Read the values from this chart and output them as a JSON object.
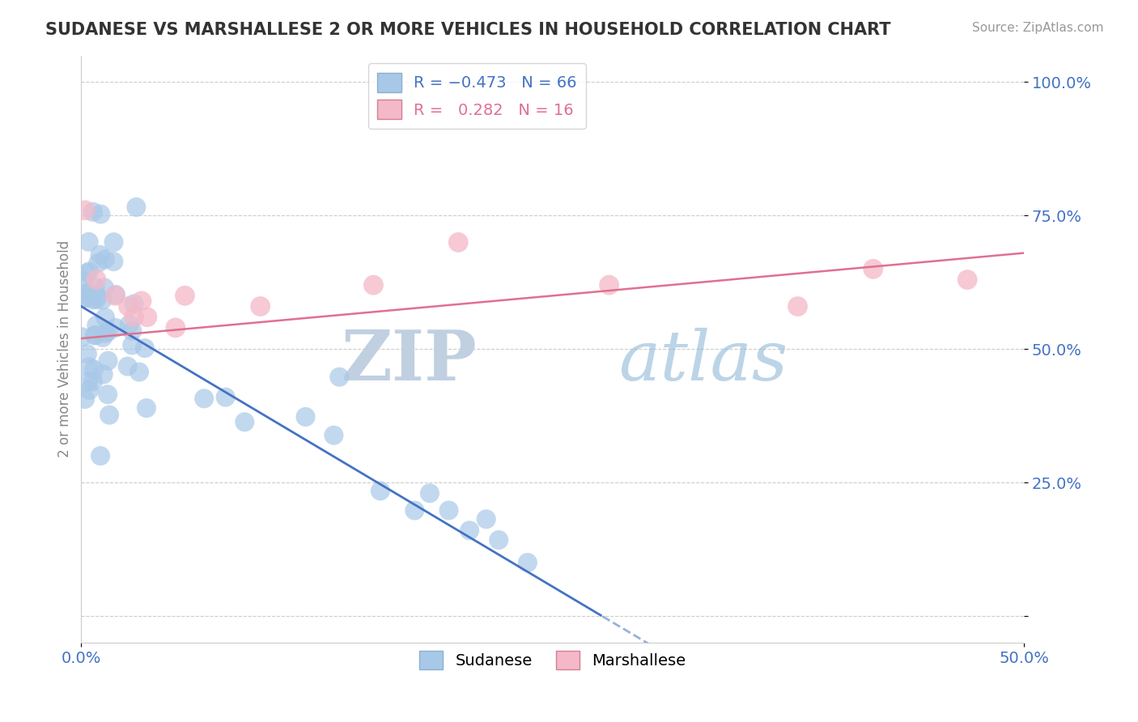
{
  "title": "SUDANESE VS MARSHALLESE 2 OR MORE VEHICLES IN HOUSEHOLD CORRELATION CHART",
  "source": "Source: ZipAtlas.com",
  "ylabel": "2 or more Vehicles in Household",
  "xlim": [
    0.0,
    0.5
  ],
  "ylim": [
    -0.05,
    1.05
  ],
  "ytick_values": [
    0.0,
    0.25,
    0.5,
    0.75,
    1.0
  ],
  "ytick_labels": [
    "",
    "25.0%",
    "50.0%",
    "75.0%",
    "100.0%"
  ],
  "xtick_values": [
    0.0,
    0.5
  ],
  "xtick_labels": [
    "0.0%",
    "50.0%"
  ],
  "sudanese_color": "#a8c8e8",
  "marshallese_color": "#f4b8c8",
  "sudanese_line_color": "#4472c4",
  "marshallese_line_color": "#e07090",
  "watermark_zip": "ZIP",
  "watermark_atlas": "atlas",
  "watermark_color_zip": "#c0d0e0",
  "watermark_color_atlas": "#90b8d8",
  "background_color": "#ffffff",
  "grid_color": "#cccccc",
  "sudanese_R": -0.473,
  "sudanese_N": 66,
  "marshallese_R": 0.282,
  "marshallese_N": 16,
  "title_color": "#333333",
  "source_color": "#999999",
  "axis_label_color": "#4472c4",
  "ylabel_color": "#888888"
}
